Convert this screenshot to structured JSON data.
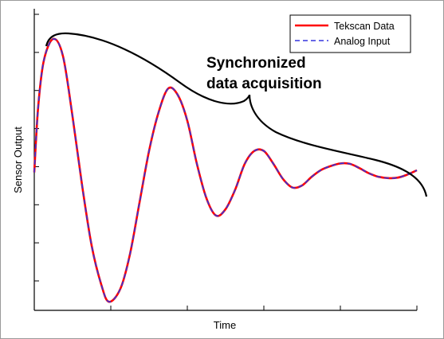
{
  "chart_data": {
    "type": "line",
    "title": "",
    "xlabel": "Time",
    "ylabel": "Sensor Output",
    "xlim": [
      0,
      10
    ],
    "ylim": [
      -3.2,
      3.8
    ],
    "x_tick_count": 6,
    "y_tick_count": 8,
    "grid": false,
    "legend_position": "top-right",
    "series": [
      {
        "name": "Tekscan Data",
        "color": "#ff0000",
        "style": "solid",
        "points": [
          [
            0.0,
            0.0
          ],
          [
            0.1,
            1.5
          ],
          [
            0.25,
            2.6
          ],
          [
            0.5,
            3.1
          ],
          [
            0.75,
            2.7
          ],
          [
            1.0,
            1.3
          ],
          [
            1.25,
            -0.3
          ],
          [
            1.5,
            -1.7
          ],
          [
            1.75,
            -2.6
          ],
          [
            1.95,
            -3.0
          ],
          [
            2.25,
            -2.7
          ],
          [
            2.5,
            -1.9
          ],
          [
            2.75,
            -0.7
          ],
          [
            3.0,
            0.5
          ],
          [
            3.25,
            1.4
          ],
          [
            3.5,
            1.95
          ],
          [
            3.75,
            1.8
          ],
          [
            4.0,
            1.2
          ],
          [
            4.25,
            0.2
          ],
          [
            4.5,
            -0.6
          ],
          [
            4.75,
            -1.0
          ],
          [
            5.0,
            -0.85
          ],
          [
            5.25,
            -0.4
          ],
          [
            5.5,
            0.2
          ],
          [
            5.75,
            0.5
          ],
          [
            6.0,
            0.5
          ],
          [
            6.25,
            0.2
          ],
          [
            6.5,
            -0.15
          ],
          [
            6.75,
            -0.35
          ],
          [
            7.0,
            -0.3
          ],
          [
            7.25,
            -0.1
          ],
          [
            7.5,
            0.06
          ],
          [
            7.75,
            0.15
          ],
          [
            8.0,
            0.21
          ],
          [
            8.25,
            0.2
          ],
          [
            8.5,
            0.1
          ],
          [
            8.75,
            -0.02
          ],
          [
            9.0,
            -0.1
          ],
          [
            9.25,
            -0.13
          ],
          [
            9.5,
            -0.12
          ],
          [
            9.75,
            -0.05
          ],
          [
            10.0,
            0.05
          ]
        ]
      },
      {
        "name": "Analog Input",
        "color": "#3333dd",
        "style": "dashed",
        "points": [
          [
            0.0,
            0.0
          ],
          [
            0.1,
            1.5
          ],
          [
            0.25,
            2.6
          ],
          [
            0.5,
            3.1
          ],
          [
            0.75,
            2.7
          ],
          [
            1.0,
            1.3
          ],
          [
            1.25,
            -0.3
          ],
          [
            1.5,
            -1.7
          ],
          [
            1.75,
            -2.6
          ],
          [
            1.95,
            -3.0
          ],
          [
            2.25,
            -2.7
          ],
          [
            2.5,
            -1.9
          ],
          [
            2.75,
            -0.7
          ],
          [
            3.0,
            0.5
          ],
          [
            3.25,
            1.4
          ],
          [
            3.5,
            1.95
          ],
          [
            3.75,
            1.8
          ],
          [
            4.0,
            1.2
          ],
          [
            4.25,
            0.2
          ],
          [
            4.5,
            -0.6
          ],
          [
            4.75,
            -1.0
          ],
          [
            5.0,
            -0.85
          ],
          [
            5.25,
            -0.4
          ],
          [
            5.5,
            0.2
          ],
          [
            5.75,
            0.5
          ],
          [
            6.0,
            0.5
          ],
          [
            6.25,
            0.2
          ],
          [
            6.5,
            -0.15
          ],
          [
            6.75,
            -0.35
          ],
          [
            7.0,
            -0.3
          ],
          [
            7.25,
            -0.1
          ],
          [
            7.5,
            0.06
          ],
          [
            7.75,
            0.15
          ],
          [
            8.0,
            0.21
          ],
          [
            8.25,
            0.2
          ],
          [
            8.5,
            0.1
          ],
          [
            8.75,
            -0.02
          ],
          [
            9.0,
            -0.1
          ],
          [
            9.25,
            -0.13
          ],
          [
            9.5,
            -0.12
          ],
          [
            9.75,
            -0.05
          ],
          [
            10.0,
            0.05
          ]
        ]
      }
    ],
    "annotations": [
      {
        "line1": "Synchronized",
        "line2": "data acquisition",
        "type": "curly-brace"
      }
    ]
  }
}
